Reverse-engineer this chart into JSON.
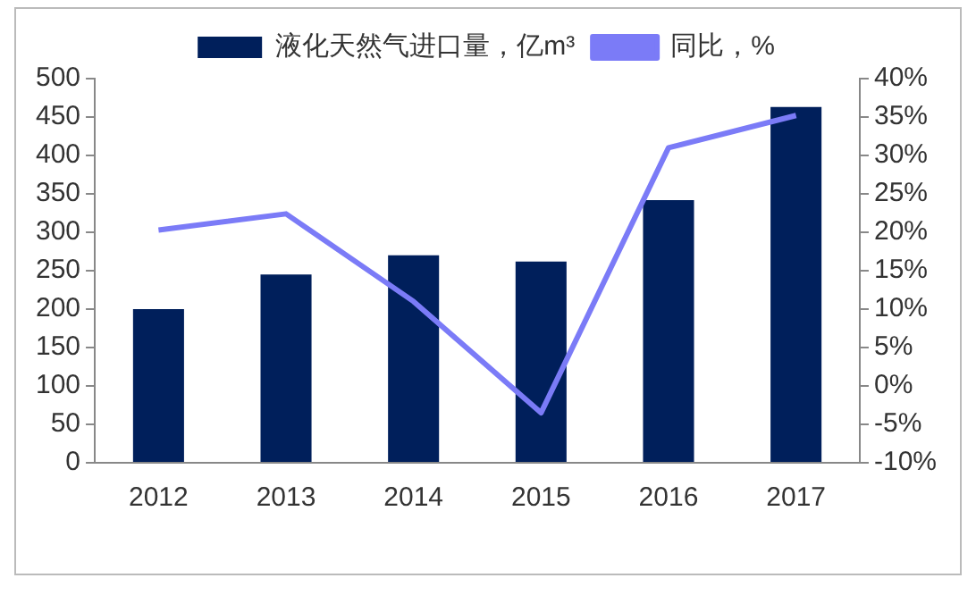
{
  "chart_data": {
    "type": "bar",
    "categories": [
      "2012",
      "2013",
      "2014",
      "2015",
      "2016",
      "2017"
    ],
    "series": [
      {
        "name": "液化天然气进口量，亿m³",
        "color": "#001f5b",
        "values": [
          200,
          245,
          270,
          262,
          342,
          463
        ]
      },
      {
        "name": "同比，%",
        "type": "line",
        "axis": "y2",
        "color": "#7b7bf7",
        "values": [
          20.3,
          22.4,
          11,
          -3.5,
          31,
          35.2
        ]
      }
    ],
    "ylim": [
      0,
      500
    ],
    "yticks": [
      0,
      50,
      100,
      150,
      200,
      250,
      300,
      350,
      400,
      450,
      500
    ],
    "y2lim": [
      -10,
      40
    ],
    "y2ticks": [
      {
        "value": -10,
        "label": "-10%"
      },
      {
        "value": -5,
        "label": "-5%"
      },
      {
        "value": 0,
        "label": "0%"
      },
      {
        "value": 5,
        "label": "5%"
      },
      {
        "value": 10,
        "label": "10%"
      },
      {
        "value": 15,
        "label": "15%"
      },
      {
        "value": 20,
        "label": "20%"
      },
      {
        "value": 25,
        "label": "25%"
      },
      {
        "value": 30,
        "label": "30%"
      },
      {
        "value": 35,
        "label": "35%"
      },
      {
        "value": 40,
        "label": "40%"
      }
    ],
    "grid": false,
    "legend": "top",
    "marker": "none"
  }
}
